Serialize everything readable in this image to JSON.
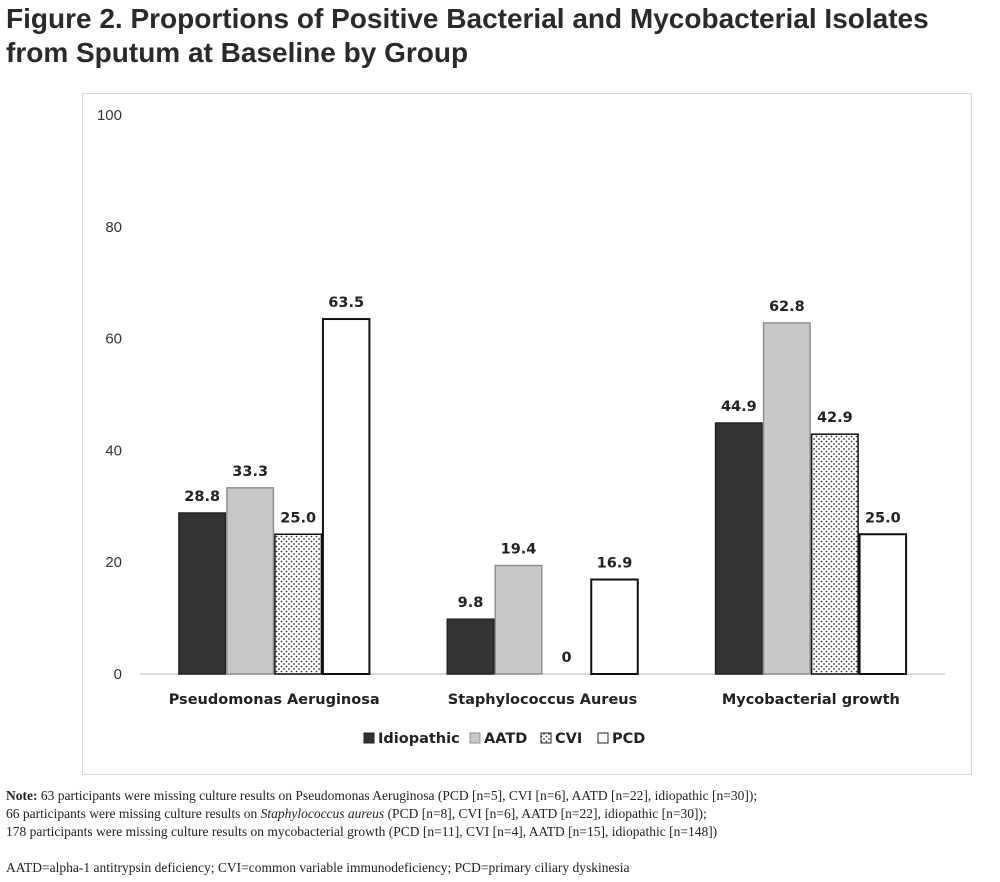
{
  "title": "Figure 2. Proportions of Positive Bacterial and Mycobacterial Isolates from Sputum at Baseline by Group",
  "chart_data": {
    "type": "bar",
    "categories": [
      "Pseudomonas Aeruginosa",
      "Staphylococcus Aureus",
      "Mycobacterial growth"
    ],
    "series": [
      {
        "name": "Idiopathic",
        "values": [
          28.8,
          9.8,
          44.9
        ],
        "labels": [
          "28.8",
          "9.8",
          "44.9"
        ],
        "fill": "#333333",
        "pattern": "solid"
      },
      {
        "name": "AATD",
        "values": [
          33.3,
          19.4,
          62.8
        ],
        "labels": [
          "33.3",
          "19.4",
          "62.8"
        ],
        "fill": "#c8c8c8",
        "pattern": "solid"
      },
      {
        "name": "CVI",
        "values": [
          25.0,
          0,
          42.9
        ],
        "labels": [
          "25.0",
          "0",
          "42.9"
        ],
        "fill": "#ffffff",
        "pattern": "dots"
      },
      {
        "name": "PCD",
        "values": [
          63.5,
          16.9,
          25.0
        ],
        "labels": [
          "63.5",
          "16.9",
          "25.0"
        ],
        "fill": "#ffffff",
        "pattern": "solid"
      }
    ],
    "ylim": [
      0,
      100
    ],
    "yticks": [
      "0",
      "20",
      "40",
      "60",
      "80",
      "100"
    ],
    "grid": false,
    "legend": "bottom"
  },
  "notes": {
    "label": "Note:",
    "line1": "63 participants were missing culture results on Pseudomonas Aeruginosa (PCD [n=5], CVI [n=6], AATD [n=22], idiopathic [n=30]);",
    "line2_pre": "66 participants were missing culture results on ",
    "line2_italic": "Staphylococcus aureus",
    "line2_post": " (PCD [n=8], CVI [n=6], AATD [n=22], idiopathic [n=30]);",
    "line3": "178 participants were missing culture results on mycobacterial growth (PCD [n=11], CVI [n=4], AATD [n=15], idiopathic [n=148])",
    "abbreviations": "AATD=alpha-1 antitrypsin deficiency; CVI=common variable immunodeficiency; PCD=primary ciliary dyskinesia"
  }
}
